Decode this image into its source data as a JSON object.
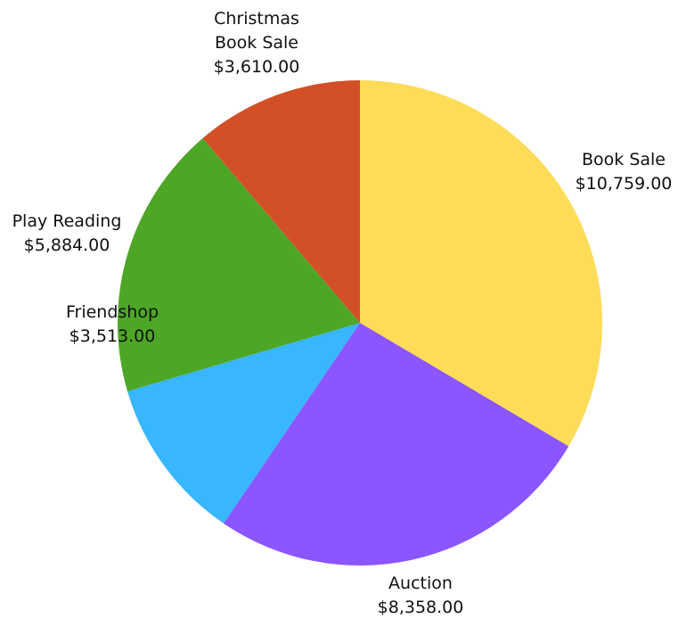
{
  "chart_data": {
    "type": "pie",
    "title": "",
    "slices": [
      {
        "name": "Book Sale",
        "name_lines": [
          "Book Sale"
        ],
        "label": "Book Sale",
        "value": 10759.0,
        "value_label": "$10,759.00",
        "color": "#FEDC58"
      },
      {
        "name": "Auction",
        "name_lines": [
          "Auction"
        ],
        "label": "Auction",
        "value": 8358.0,
        "value_label": "$8,358.00",
        "color": "#8B55FF"
      },
      {
        "name": "Friendshop",
        "name_lines": [
          "Friendshop"
        ],
        "label": "Friendshop",
        "value": 3513.0,
        "value_label": "$3,513.00",
        "color": "#38B6FF"
      },
      {
        "name": "Play Reading",
        "name_lines": [
          "Play Reading"
        ],
        "label": "Play Reading",
        "value": 5884.0,
        "value_label": "$5,884.00",
        "color": "#4EA626"
      },
      {
        "name": "Christmas Book Sale",
        "name_lines": [
          "Christmas",
          "Book Sale"
        ],
        "label": "Christmas Book Sale",
        "value": 3610.0,
        "value_label": "$3,610.00",
        "color": "#D35027"
      }
    ],
    "start_angle_deg": 0,
    "direction": "clockwise",
    "legend": "none",
    "labels": "outside"
  }
}
